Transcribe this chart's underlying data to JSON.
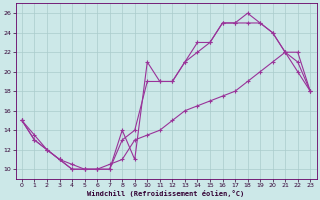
{
  "xlabel": "Windchill (Refroidissement éolien,°C)",
  "xlim": [
    -0.5,
    23.5
  ],
  "ylim": [
    9,
    27
  ],
  "xticks": [
    0,
    1,
    2,
    3,
    4,
    5,
    6,
    7,
    8,
    9,
    10,
    11,
    12,
    13,
    14,
    15,
    16,
    17,
    18,
    19,
    20,
    21,
    22,
    23
  ],
  "yticks": [
    10,
    12,
    14,
    16,
    18,
    20,
    22,
    24,
    26
  ],
  "bg_color": "#cce8e8",
  "grid_color": "#aacccc",
  "line_color": "#993399",
  "line1_x": [
    0,
    1,
    2,
    3,
    4,
    5,
    6,
    7,
    8,
    9,
    10,
    11,
    12,
    13,
    14,
    15,
    16,
    17,
    18,
    19,
    20,
    21,
    22,
    23
  ],
  "line1_y": [
    15,
    13,
    12,
    11,
    10,
    10,
    10,
    10,
    14,
    11,
    21,
    19,
    19,
    21,
    23,
    23,
    25,
    25,
    26,
    25,
    24,
    22,
    20,
    18
  ],
  "line2_x": [
    0,
    1,
    2,
    3,
    4,
    5,
    6,
    7,
    8,
    9,
    10,
    11,
    12,
    13,
    14,
    15,
    16,
    17,
    18,
    19,
    20,
    21,
    22,
    23
  ],
  "line2_y": [
    15,
    13,
    12,
    11,
    10,
    10,
    10,
    10,
    13,
    14,
    19,
    19,
    19,
    21,
    22,
    23,
    25,
    25,
    25,
    25,
    24,
    22,
    21,
    18
  ],
  "line3_x": [
    0,
    1,
    2,
    3,
    4,
    5,
    6,
    7,
    8,
    9,
    10,
    11,
    12,
    13,
    14,
    15,
    16,
    17,
    18,
    19,
    20,
    21,
    22,
    23
  ],
  "line3_y": [
    15,
    13.5,
    12,
    11,
    10.5,
    10,
    10,
    10.5,
    11,
    13,
    13.5,
    14,
    15,
    16,
    16.5,
    17,
    17.5,
    18,
    19,
    20,
    21,
    22,
    22,
    18
  ]
}
